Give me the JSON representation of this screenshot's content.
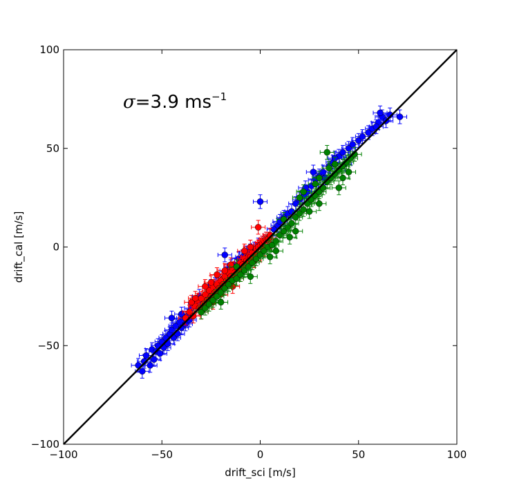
{
  "chart_data": {
    "type": "scatter",
    "xlabel": "drift_sci [m/s]",
    "ylabel": "drift_cal [m/s]",
    "xlim": [
      -100,
      100
    ],
    "ylim": [
      -100,
      100
    ],
    "xticks": [
      "−100",
      "−50",
      "0",
      "50",
      "100"
    ],
    "yticks": [
      "−100",
      "−50",
      "0",
      "50",
      "100"
    ],
    "grid": false,
    "annotation": {
      "prefix": "σ",
      "text": "=3.9 ms",
      "sup": "−1"
    },
    "reference_line": {
      "x": [
        -100,
        100
      ],
      "y": [
        -100,
        100
      ],
      "color": "#000000"
    },
    "series": [
      {
        "color": "#0000ff",
        "points": [
          [
            -62,
            -60
          ],
          [
            -60,
            -63
          ],
          [
            -59,
            -58
          ],
          [
            -58,
            -55
          ],
          [
            -56,
            -60
          ],
          [
            -55,
            -52
          ],
          [
            -54,
            -57
          ],
          [
            -53,
            -53
          ],
          [
            -52,
            -50
          ],
          [
            -51,
            -54
          ],
          [
            -50,
            -48
          ],
          [
            -49,
            -51
          ],
          [
            -48,
            -46
          ],
          [
            -47,
            -49
          ],
          [
            -46,
            -44
          ],
          [
            -45,
            -42
          ],
          [
            -44,
            -46
          ],
          [
            -43,
            -40
          ],
          [
            -42,
            -44
          ],
          [
            -41,
            -38
          ],
          [
            -40,
            -41
          ],
          [
            -39,
            -36
          ],
          [
            -38,
            -39
          ],
          [
            -37,
            -35
          ],
          [
            -36,
            -37
          ],
          [
            -45,
            -36
          ],
          [
            -40,
            -34
          ],
          [
            -35,
            -31
          ],
          [
            -33,
            -29
          ],
          [
            -31,
            -25
          ],
          [
            -29,
            -28
          ],
          [
            -27,
            -24
          ],
          [
            -25,
            -20
          ],
          [
            -23,
            -19
          ],
          [
            -21,
            -18
          ],
          [
            -19,
            -16
          ],
          [
            -18,
            -4
          ],
          [
            -17,
            -12
          ],
          [
            -15,
            -10
          ],
          [
            -13,
            -9
          ],
          [
            -11,
            -6
          ],
          [
            -9,
            -5
          ],
          [
            -7,
            -3
          ],
          [
            -5,
            -2
          ],
          [
            -3,
            -1
          ],
          [
            -1,
            1
          ],
          [
            1,
            2
          ],
          [
            3,
            4
          ],
          [
            5,
            6
          ],
          [
            7,
            9
          ],
          [
            9,
            11
          ],
          [
            10,
            13
          ],
          [
            12,
            15
          ],
          [
            14,
            17
          ],
          [
            0,
            23
          ],
          [
            16,
            18
          ],
          [
            18,
            22
          ],
          [
            20,
            24
          ],
          [
            22,
            26
          ],
          [
            24,
            28
          ],
          [
            26,
            31
          ],
          [
            28,
            34
          ],
          [
            30,
            36
          ],
          [
            32,
            38
          ],
          [
            35,
            41
          ],
          [
            37,
            43
          ],
          [
            40,
            46
          ],
          [
            42,
            48
          ],
          [
            45,
            50
          ],
          [
            47,
            52
          ],
          [
            50,
            54
          ],
          [
            52,
            56
          ],
          [
            55,
            58
          ],
          [
            57,
            60
          ],
          [
            60,
            63
          ],
          [
            62,
            66
          ],
          [
            64,
            64
          ],
          [
            66,
            67
          ],
          [
            71,
            66
          ],
          [
            59,
            61
          ],
          [
            61,
            68
          ],
          [
            43,
            42
          ],
          [
            38,
            45
          ],
          [
            33,
            35
          ],
          [
            27,
            38
          ],
          [
            23,
            30
          ]
        ]
      },
      {
        "color": "#ff0000",
        "points": [
          [
            -38,
            -36
          ],
          [
            -36,
            -33
          ],
          [
            -34,
            -35
          ],
          [
            -33,
            -30
          ],
          [
            -32,
            -27
          ],
          [
            -31,
            -31
          ],
          [
            -30,
            -26
          ],
          [
            -29,
            -29
          ],
          [
            -28,
            -24
          ],
          [
            -27,
            -27
          ],
          [
            -26,
            -22
          ],
          [
            -25,
            -25
          ],
          [
            -24,
            -20
          ],
          [
            -23,
            -23
          ],
          [
            -22,
            -19
          ],
          [
            -21,
            -21
          ],
          [
            -20,
            -17
          ],
          [
            -19,
            -19
          ],
          [
            -18,
            -15
          ],
          [
            -17,
            -17
          ],
          [
            -16,
            -13
          ],
          [
            -15,
            -15
          ],
          [
            -14,
            -11
          ],
          [
            -13,
            -13
          ],
          [
            -12,
            -10
          ],
          [
            -11,
            -11
          ],
          [
            -10,
            -8
          ],
          [
            -9,
            -9
          ],
          [
            -8,
            -6
          ],
          [
            -7,
            -7
          ],
          [
            -6,
            -5
          ],
          [
            -5,
            -5
          ],
          [
            -4,
            -3
          ],
          [
            -3,
            -3
          ],
          [
            -2,
            -1
          ],
          [
            -1,
            0
          ],
          [
            0,
            1
          ],
          [
            1,
            2
          ],
          [
            2,
            3
          ],
          [
            3,
            4
          ],
          [
            4,
            4
          ],
          [
            5,
            6
          ],
          [
            -1,
            10
          ],
          [
            -35,
            -28
          ],
          [
            -30,
            -33
          ],
          [
            -25,
            -18
          ],
          [
            -20,
            -24
          ],
          [
            -15,
            -9
          ],
          [
            -10,
            -14
          ],
          [
            -5,
            0
          ],
          [
            -28,
            -20
          ],
          [
            -24,
            -28
          ],
          [
            -18,
            -12
          ],
          [
            -12,
            -16
          ],
          [
            -8,
            -2
          ],
          [
            -3,
            -7
          ],
          [
            2,
            -1
          ],
          [
            -33,
            -26
          ],
          [
            -22,
            -14
          ],
          [
            -14,
            -20
          ]
        ]
      },
      {
        "color": "#008000",
        "points": [
          [
            -30,
            -33
          ],
          [
            -28,
            -31
          ],
          [
            -26,
            -29
          ],
          [
            -24,
            -27
          ],
          [
            -22,
            -25
          ],
          [
            -20,
            -23
          ],
          [
            -18,
            -21
          ],
          [
            -16,
            -19
          ],
          [
            -14,
            -17
          ],
          [
            -12,
            -16
          ],
          [
            -10,
            -14
          ],
          [
            -8,
            -12
          ],
          [
            -6,
            -10
          ],
          [
            -4,
            -8
          ],
          [
            -2,
            -6
          ],
          [
            0,
            -4
          ],
          [
            2,
            -2
          ],
          [
            4,
            0
          ],
          [
            6,
            1
          ],
          [
            8,
            3
          ],
          [
            10,
            6
          ],
          [
            12,
            8
          ],
          [
            14,
            10
          ],
          [
            16,
            12
          ],
          [
            18,
            15
          ],
          [
            20,
            17
          ],
          [
            22,
            19
          ],
          [
            24,
            22
          ],
          [
            26,
            24
          ],
          [
            28,
            26
          ],
          [
            30,
            28
          ],
          [
            32,
            30
          ],
          [
            34,
            33
          ],
          [
            36,
            35
          ],
          [
            38,
            37
          ],
          [
            40,
            39
          ],
          [
            42,
            41
          ],
          [
            44,
            43
          ],
          [
            46,
            45
          ],
          [
            48,
            47
          ],
          [
            34,
            48
          ],
          [
            22,
            28
          ],
          [
            30,
            22
          ],
          [
            40,
            30
          ],
          [
            45,
            38
          ],
          [
            15,
            5
          ],
          [
            8,
            -2
          ],
          [
            -5,
            -15
          ],
          [
            -20,
            -28
          ],
          [
            35,
            40
          ],
          [
            25,
            18
          ],
          [
            18,
            8
          ],
          [
            28,
            32
          ],
          [
            38,
            42
          ],
          [
            12,
            14
          ],
          [
            5,
            -5
          ],
          [
            -12,
            -10
          ],
          [
            30,
            35
          ],
          [
            42,
            35
          ],
          [
            20,
            25
          ]
        ]
      }
    ]
  }
}
